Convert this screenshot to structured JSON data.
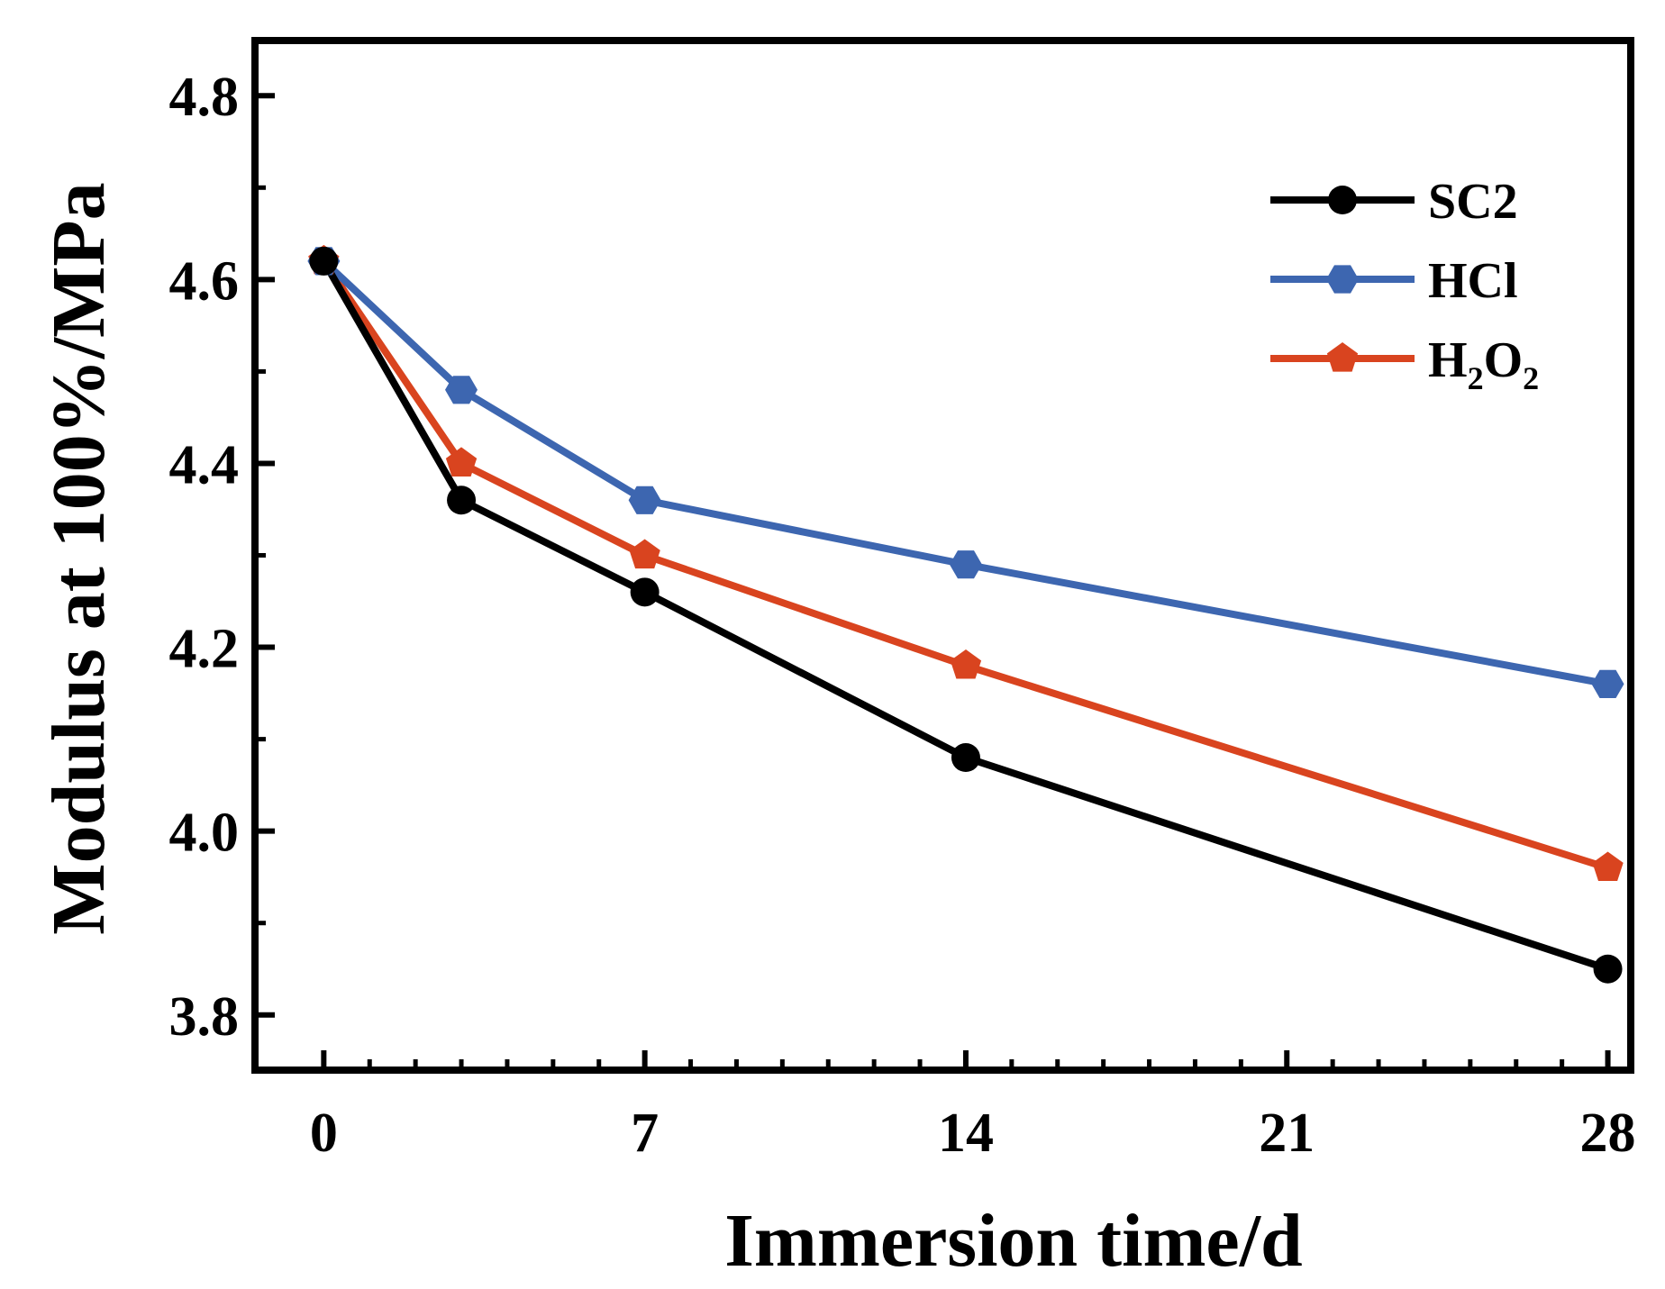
{
  "chart_data": {
    "type": "line",
    "xlabel": "Immersion time/d",
    "ylabel": "Modulus at 100%/MPa",
    "xlim": [
      -1.5,
      28.5
    ],
    "ylim": [
      3.74,
      4.86
    ],
    "x_ticks": [
      0,
      7,
      14,
      21,
      28
    ],
    "x_tick_labels": [
      "0",
      "7",
      "14",
      "21",
      "28"
    ],
    "y_ticks": [
      3.8,
      4.0,
      4.2,
      4.4,
      4.6,
      4.8
    ],
    "y_tick_labels": [
      "3.8",
      "4.0",
      "4.2",
      "4.4",
      "4.6",
      "4.8"
    ],
    "legend_position": "top-right",
    "x": [
      0,
      3,
      7,
      14,
      28
    ],
    "series": [
      {
        "name": "SC2",
        "label_main": "SC2",
        "color": "#000000",
        "marker": "circle",
        "values": [
          4.62,
          4.36,
          4.26,
          4.08,
          3.85
        ]
      },
      {
        "name": "HCl",
        "label_main": "HCl",
        "color": "#3d66b0",
        "marker": "hexagon",
        "values": [
          4.62,
          4.48,
          4.36,
          4.29,
          4.16
        ]
      },
      {
        "name": "H2O2",
        "label_main": "H",
        "label_sub1": "2",
        "label_mid": "O",
        "label_sub2": "2",
        "color": "#d9441f",
        "marker": "pentagon",
        "values": [
          4.62,
          4.4,
          4.3,
          4.18,
          3.96
        ]
      }
    ]
  }
}
